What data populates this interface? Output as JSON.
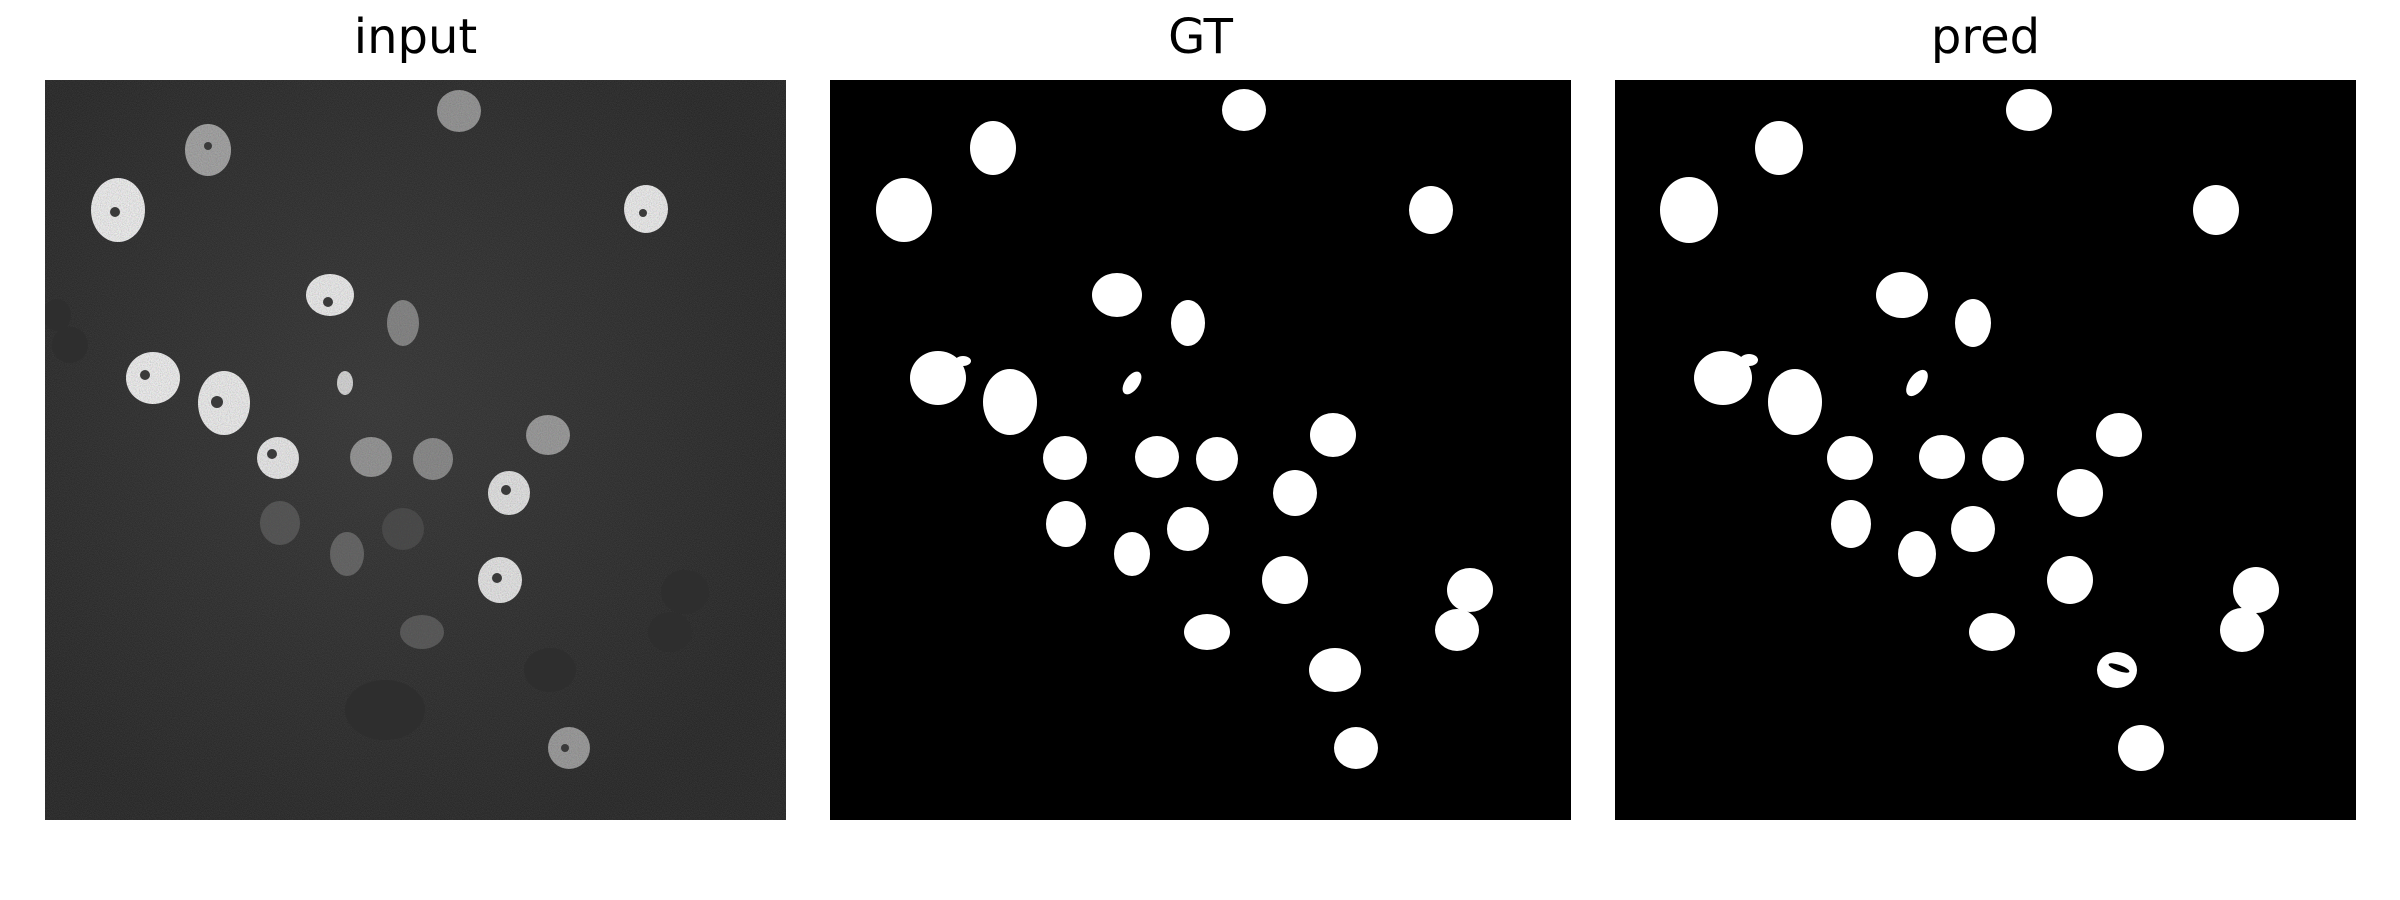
{
  "panels": [
    {
      "id": "input",
      "title": "input"
    },
    {
      "id": "gt",
      "title": "GT"
    },
    {
      "id": "pred",
      "title": "pred"
    }
  ],
  "colors": {
    "background": "#ffffff",
    "image_background": "#000000",
    "mask_foreground": "#ffffff",
    "title_text": "#000000"
  }
}
